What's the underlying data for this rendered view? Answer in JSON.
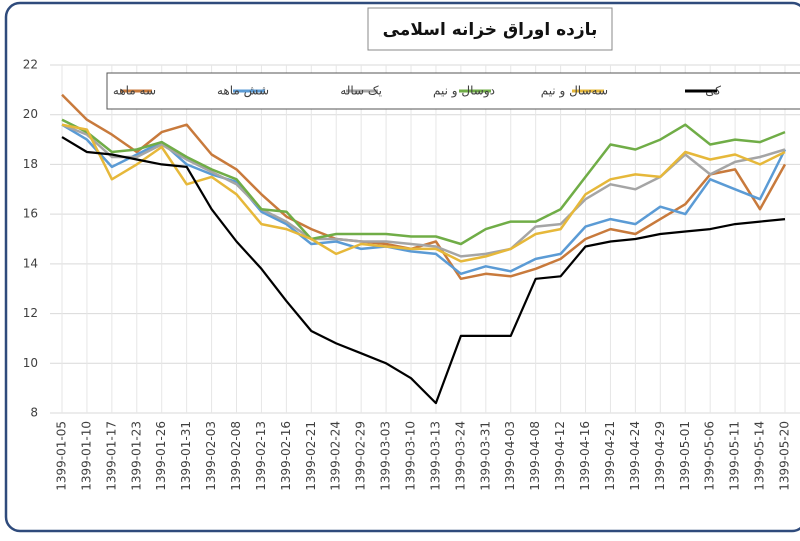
{
  "chart_data": {
    "type": "line",
    "title": "بازده اوراق خزانه اسلامی",
    "categories": [
      "1399-01-05",
      "1399-01-10",
      "1399-01-17",
      "1399-01-23",
      "1399-01-26",
      "1399-01-31",
      "1399-02-03",
      "1399-02-08",
      "1399-02-13",
      "1399-02-16",
      "1399-02-21",
      "1399-02-24",
      "1399-02-29",
      "1399-03-03",
      "1399-03-10",
      "1399-03-13",
      "1399-03-24",
      "1399-03-31",
      "1399-04-03",
      "1399-04-08",
      "1399-04-12",
      "1399-04-16",
      "1399-04-21",
      "1399-04-24",
      "1399-04-29",
      "1399-05-01",
      "1399-05-06",
      "1399-05-11",
      "1399-05-14",
      "1399-05-20"
    ],
    "series": [
      {
        "name": "سه ماهه",
        "color": "#c87a3c",
        "values": [
          20.8,
          19.8,
          19.2,
          18.5,
          19.3,
          19.6,
          18.4,
          17.8,
          16.8,
          15.9,
          15.4,
          15.0,
          14.9,
          14.8,
          14.6,
          14.9,
          13.4,
          13.6,
          13.5,
          13.8,
          14.2,
          15.0,
          15.4,
          15.2,
          15.8,
          16.4,
          17.6,
          17.8,
          16.2,
          18.0
        ]
      },
      {
        "name": "شش ماهه",
        "color": "#5b9bd5",
        "values": [
          19.6,
          19.0,
          17.9,
          18.4,
          18.9,
          18.0,
          17.6,
          17.3,
          16.1,
          15.6,
          14.8,
          14.9,
          14.6,
          14.7,
          14.5,
          14.4,
          13.6,
          13.9,
          13.7,
          14.2,
          14.4,
          15.5,
          15.8,
          15.6,
          16.3,
          16.0,
          17.4,
          17.0,
          16.6,
          18.6
        ]
      },
      {
        "name": "یک ساله",
        "color": "#a5a5a5",
        "values": [
          19.6,
          19.2,
          18.3,
          18.3,
          18.8,
          18.2,
          17.7,
          17.2,
          16.2,
          15.7,
          15.0,
          15.0,
          14.9,
          14.9,
          14.8,
          14.7,
          14.3,
          14.4,
          14.6,
          15.5,
          15.6,
          16.6,
          17.2,
          17.0,
          17.5,
          18.4,
          17.6,
          18.1,
          18.3,
          18.6
        ]
      },
      {
        "name": "دوسال و نیم",
        "color": "#70ad47",
        "values": [
          19.8,
          19.3,
          18.5,
          18.6,
          18.9,
          18.3,
          17.8,
          17.4,
          16.2,
          16.1,
          15.0,
          15.2,
          15.2,
          15.2,
          15.1,
          15.1,
          14.8,
          15.4,
          15.7,
          15.7,
          16.2,
          17.5,
          18.8,
          18.6,
          19.0,
          19.6,
          18.8,
          19.0,
          18.9,
          19.3
        ]
      },
      {
        "name": "سه‌سال و نیم",
        "color": "#e6b83a",
        "values": [
          19.6,
          19.4,
          17.4,
          18.0,
          18.7,
          17.2,
          17.5,
          16.8,
          15.6,
          15.4,
          15.0,
          14.4,
          14.8,
          14.7,
          14.6,
          14.6,
          14.1,
          14.3,
          14.6,
          15.2,
          15.4,
          16.8,
          17.4,
          17.6,
          17.5,
          18.5,
          18.2,
          18.4,
          18.0,
          18.5
        ]
      },
      {
        "name": "کی",
        "color": "#000000",
        "values": [
          19.1,
          18.5,
          18.4,
          18.2,
          18.0,
          17.9,
          16.2,
          14.9,
          13.8,
          12.5,
          11.3,
          10.8,
          10.4,
          10.0,
          9.4,
          8.4,
          11.1,
          11.1,
          11.1,
          13.4,
          13.5,
          14.7,
          14.9,
          15.0,
          15.2,
          15.3,
          15.4,
          15.6,
          15.7,
          15.8
        ]
      }
    ],
    "ylim": [
      8,
      22
    ],
    "yticks": [
      8,
      10,
      12,
      14,
      16,
      18,
      20,
      22
    ],
    "grid": true
  }
}
